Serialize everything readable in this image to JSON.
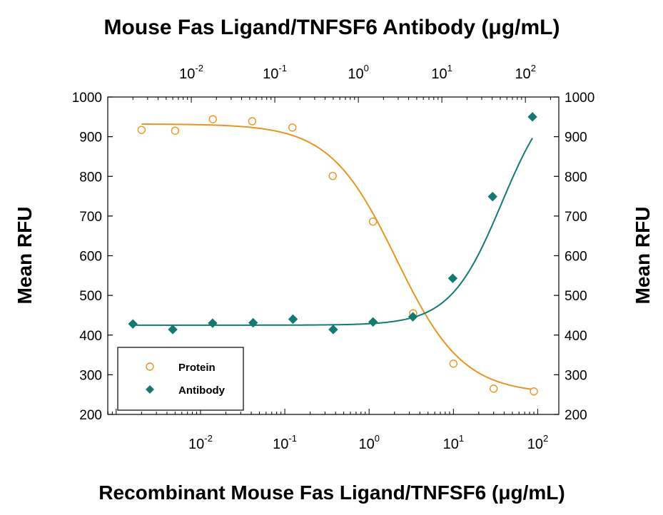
{
  "chart_data": {
    "type": "scatter",
    "title": "Mouse Fas Ligand/TNFSF6 Antibody (μg/mL)",
    "xlabel": "Recombinant Mouse Fas Ligand/TNFSF6 (μg/mL)",
    "ylabel": "Mean RFU",
    "ylabel_right": "Mean RFU",
    "x_scale": "log",
    "ylim": [
      200,
      1000
    ],
    "y_ticks": [
      "200",
      "300",
      "400",
      "500",
      "600",
      "700",
      "800",
      "900",
      "1000"
    ],
    "bottom_axis": {
      "xlim_log10": [
        -3.1,
        2.25
      ],
      "ticks": [
        {
          "exponent": -2,
          "base": "10",
          "sup": "-2"
        },
        {
          "exponent": -1,
          "base": "10",
          "sup": "-1"
        },
        {
          "exponent": 0,
          "base": "10",
          "sup": "0"
        },
        {
          "exponent": 1,
          "base": "10",
          "sup": "1"
        },
        {
          "exponent": 2,
          "base": "10",
          "sup": "2"
        }
      ]
    },
    "top_axis": {
      "xlim_log10": [
        -3.0,
        2.4
      ],
      "ticks": [
        {
          "exponent": -2,
          "base": "10",
          "sup": "-2"
        },
        {
          "exponent": -1,
          "base": "10",
          "sup": "-1"
        },
        {
          "exponent": 0,
          "base": "10",
          "sup": "0"
        },
        {
          "exponent": 1,
          "base": "10",
          "sup": "1"
        },
        {
          "exponent": 2,
          "base": "10",
          "sup": "2"
        }
      ]
    },
    "legend": {
      "position": "bottom-left",
      "entries": [
        {
          "name": "Protein",
          "marker": "open-circle",
          "color": "#E8961E"
        },
        {
          "name": "Antibody",
          "marker": "filled-diamond",
          "color": "#127A73"
        }
      ]
    },
    "series": [
      {
        "name": "Protein",
        "axis": "bottom",
        "color": "#E8961E",
        "marker": "open-circle",
        "x": [
          0.002,
          0.005,
          0.014,
          0.041,
          0.123,
          0.37,
          1.11,
          3.33,
          10.0,
          30.0,
          90.0
        ],
        "y": [
          917,
          915,
          944,
          939,
          923,
          801,
          686,
          455,
          328,
          265,
          258
        ],
        "fit": {
          "top": 932,
          "bottom": 252,
          "ec50": 2.1,
          "hill": 1.1
        }
      },
      {
        "name": "Antibody",
        "axis": "top",
        "color": "#127A73",
        "marker": "filled-diamond",
        "x": [
          0.002,
          0.006,
          0.018,
          0.055,
          0.165,
          0.5,
          1.5,
          4.5,
          13.5,
          40.5,
          121.5
        ],
        "y": [
          428,
          414,
          430,
          431,
          440,
          414,
          433,
          446,
          543,
          749,
          950
        ],
        "fit": {
          "top": 1040,
          "bottom": 425,
          "ec50": 52,
          "hill": 1.4
        }
      }
    ]
  },
  "colors": {
    "protein": "#E8961E",
    "antibody": "#127A73",
    "axis": "#000000",
    "background": "#ffffff"
  }
}
